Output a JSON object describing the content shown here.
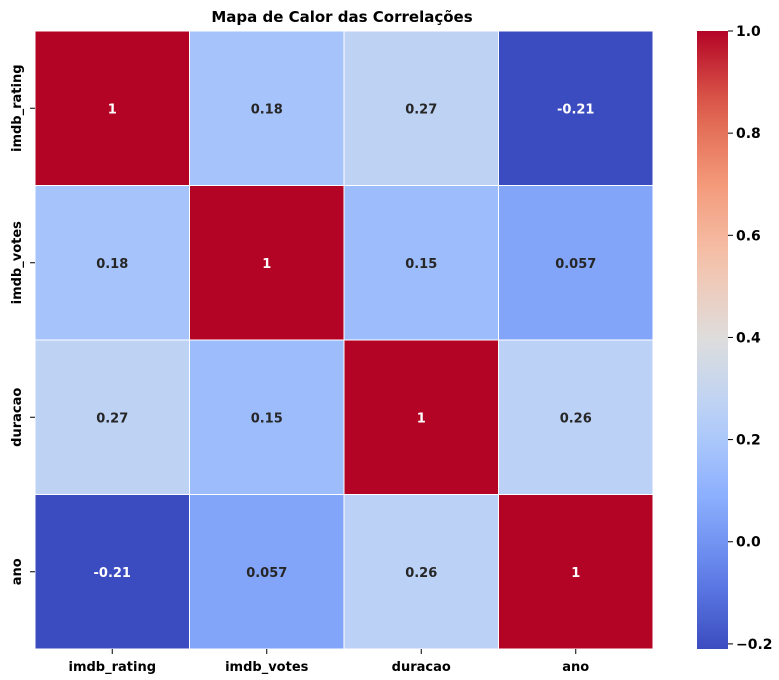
{
  "chart_data": {
    "type": "heatmap",
    "title": "Mapa de Calor das Correlações",
    "xlabel": "",
    "ylabel": "",
    "x_categories": [
      "imdb_rating",
      "imdb_votes",
      "duracao",
      "ano"
    ],
    "y_categories": [
      "imdb_rating",
      "imdb_votes",
      "duracao",
      "ano"
    ],
    "values": [
      [
        1,
        0.18,
        0.27,
        -0.21
      ],
      [
        0.18,
        1,
        0.15,
        0.057
      ],
      [
        0.27,
        0.15,
        1,
        0.26
      ],
      [
        -0.21,
        0.057,
        0.26,
        1
      ]
    ],
    "annotations": [
      [
        "1",
        "0.18",
        "0.27",
        "-0.21"
      ],
      [
        "0.18",
        "1",
        "0.15",
        "0.057"
      ],
      [
        "0.27",
        "0.15",
        "1",
        "0.26"
      ],
      [
        "-0.21",
        "0.057",
        "0.26",
        "1"
      ]
    ],
    "colormap": "coolwarm",
    "vmin": -0.21,
    "vmax": 1.0,
    "colorbar_ticks": [
      -0.2,
      0.0,
      0.2,
      0.4,
      0.6,
      0.8,
      1.0
    ],
    "colorbar_tick_labels": [
      "−0.2",
      "0.0",
      "0.2",
      "0.4",
      "0.6",
      "0.8",
      "1.0"
    ],
    "grid": false
  }
}
